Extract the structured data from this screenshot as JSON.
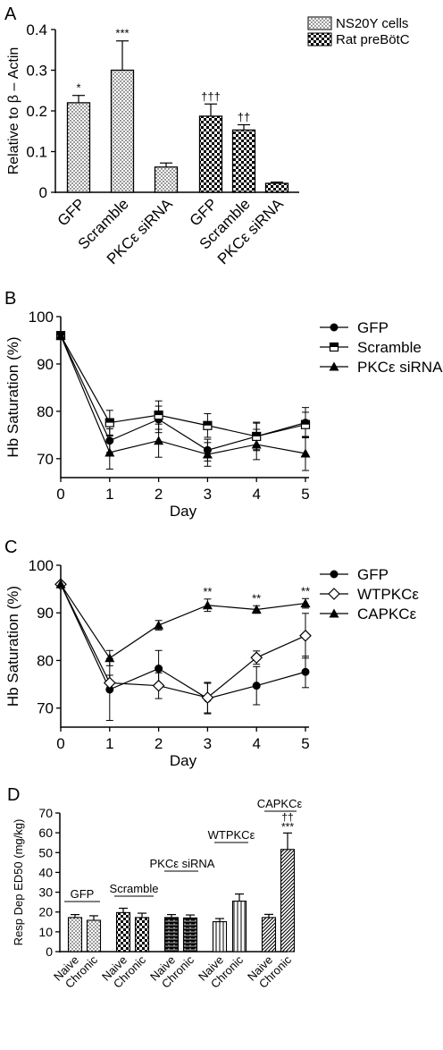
{
  "chart_data": [
    {
      "panel": "A",
      "type": "bar",
      "ylabel": "Relative to β – Actin",
      "ylim": [
        0,
        0.4
      ],
      "yticks": [
        "0",
        "0.1",
        "0.2",
        "0.3",
        "0.4"
      ],
      "legend_position": "top-right",
      "series": [
        {
          "name": "NS20Y cells",
          "pattern": "dots",
          "categories": [
            "GFP",
            "Scramble",
            "PKCε siRNA"
          ],
          "values": [
            0.22,
            0.3,
            0.062
          ],
          "errors": [
            0.018,
            0.072,
            0.01
          ],
          "annotations": [
            "*",
            "***",
            ""
          ]
        },
        {
          "name": "Rat preBötC",
          "pattern": "check",
          "categories": [
            "GFP",
            "Scramble",
            "PKCε siRNA"
          ],
          "values": [
            0.187,
            0.153,
            0.022
          ],
          "errors": [
            0.03,
            0.013,
            0.003
          ],
          "annotations": [
            "†††",
            "††",
            ""
          ]
        }
      ]
    },
    {
      "panel": "B",
      "type": "line",
      "xlabel": "Day",
      "ylabel": "Hb Saturation (%)",
      "x": [
        0,
        1,
        2,
        3,
        4,
        5
      ],
      "xticks": [
        "0",
        "1",
        "2",
        "3",
        "4",
        "5"
      ],
      "ylim": [
        66,
        100
      ],
      "yticks": [
        "70",
        "80",
        "90",
        "100"
      ],
      "legend_position": "top-right",
      "series": [
        {
          "name": "GFP",
          "marker": "circle-filled",
          "values": [
            96,
            73.8,
            78.3,
            71.8,
            74.7,
            77.6
          ],
          "errors": [
            0,
            2.5,
            2.8,
            2.3,
            3.0,
            3.2
          ]
        },
        {
          "name": "Scramble",
          "marker": "square-half",
          "values": [
            96,
            77.6,
            79.2,
            77.0,
            74.7,
            77.2
          ],
          "errors": [
            0,
            2.6,
            3.0,
            2.5,
            2.8,
            2.6
          ]
        },
        {
          "name": "PKCε siRNA",
          "marker": "triangle-filled",
          "values": [
            96,
            71.3,
            73.8,
            70.9,
            73.0,
            71.1
          ],
          "errors": [
            0,
            3.5,
            3.5,
            2.5,
            3.2,
            3.6
          ]
        }
      ]
    },
    {
      "panel": "C",
      "type": "line",
      "xlabel": "Day",
      "ylabel": "Hb Saturation (%)",
      "x": [
        0,
        1,
        2,
        3,
        4,
        5
      ],
      "xticks": [
        "0",
        "1",
        "2",
        "3",
        "4",
        "5"
      ],
      "ylim": [
        66,
        100
      ],
      "yticks": [
        "70",
        "80",
        "90",
        "100"
      ],
      "legend_position": "top-right",
      "annotations": [
        {
          "x": 3,
          "text": "**"
        },
        {
          "x": 4,
          "text": "**"
        },
        {
          "x": 5,
          "text": "**"
        }
      ],
      "series": [
        {
          "name": "GFP",
          "marker": "circle-filled",
          "values": [
            96,
            73.9,
            78.3,
            72.0,
            74.7,
            77.6
          ],
          "errors": [
            0,
            6.5,
            3.8,
            3.2,
            4.0,
            3.3
          ]
        },
        {
          "name": "WTPKCε",
          "marker": "diamond-open",
          "values": [
            96,
            75.3,
            74.7,
            72.2,
            80.6,
            85.2
          ],
          "errors": [
            0,
            1.6,
            2.7,
            3.2,
            1.4,
            4.7
          ]
        },
        {
          "name": "CAPKCε",
          "marker": "triangle-filled",
          "values": [
            96,
            80.5,
            87.4,
            91.6,
            90.7,
            92.0
          ],
          "errors": [
            0,
            1.6,
            1.0,
            1.3,
            0.8,
            1.0
          ]
        }
      ]
    },
    {
      "panel": "D",
      "type": "bar",
      "ylabel": "Resp Dep ED50 (mg/kg)",
      "ylim": [
        0,
        70
      ],
      "yticks": [
        "0",
        "10",
        "20",
        "30",
        "40",
        "50",
        "60",
        "70"
      ],
      "categories": [
        "Naive",
        "Chronic",
        "Naive",
        "Chronic",
        "Naive",
        "Chronic",
        "Naive",
        "Chronic",
        "Naive",
        "Chronic"
      ],
      "groups": [
        {
          "name": "GFP",
          "pattern": "dots",
          "values": [
            17.2,
            15.8
          ],
          "errors": [
            1.5,
            2.3
          ]
        },
        {
          "name": "Scramble",
          "pattern": "check",
          "values": [
            19.7,
            17.2
          ],
          "errors": [
            2.2,
            2.2
          ]
        },
        {
          "name": "PKCε siRNA",
          "pattern": "brick",
          "values": [
            17.2,
            17.0
          ],
          "errors": [
            1.5,
            1.5
          ]
        },
        {
          "name": "WTPKCε",
          "pattern": "vlines",
          "values": [
            15.1,
            25.5
          ],
          "errors": [
            1.6,
            3.6
          ]
        },
        {
          "name": "CAPKCε",
          "pattern": "diag",
          "values": [
            17.2,
            51.6
          ],
          "errors": [
            1.6,
            8.3
          ],
          "annotation_daggers": "††",
          "annotation_stars": "***"
        }
      ]
    }
  ]
}
